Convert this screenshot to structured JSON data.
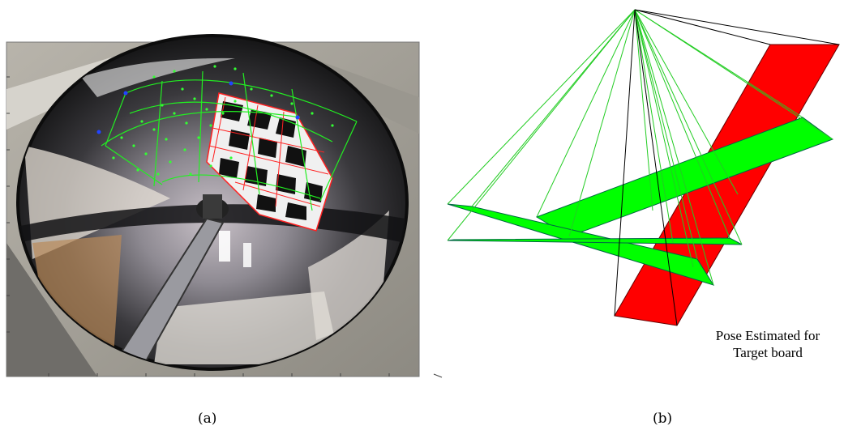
{
  "figure": {
    "panels": [
      {
        "id": "a",
        "caption": "(a)",
        "content": "omnidirectional-mirror-image"
      },
      {
        "id": "b",
        "caption": "(b)",
        "content": "pose-estimation-3d-view"
      }
    ],
    "pose_label": {
      "line1": "Pose Estimated for",
      "line2": "Target board"
    },
    "colors": {
      "board_red": "#ff0000",
      "board_green": "#00ff00",
      "ray_green": "#22cc22",
      "grid_red": "#ff2222",
      "mirror_dark": "#1e1e20",
      "frame_border": "#777777"
    }
  }
}
